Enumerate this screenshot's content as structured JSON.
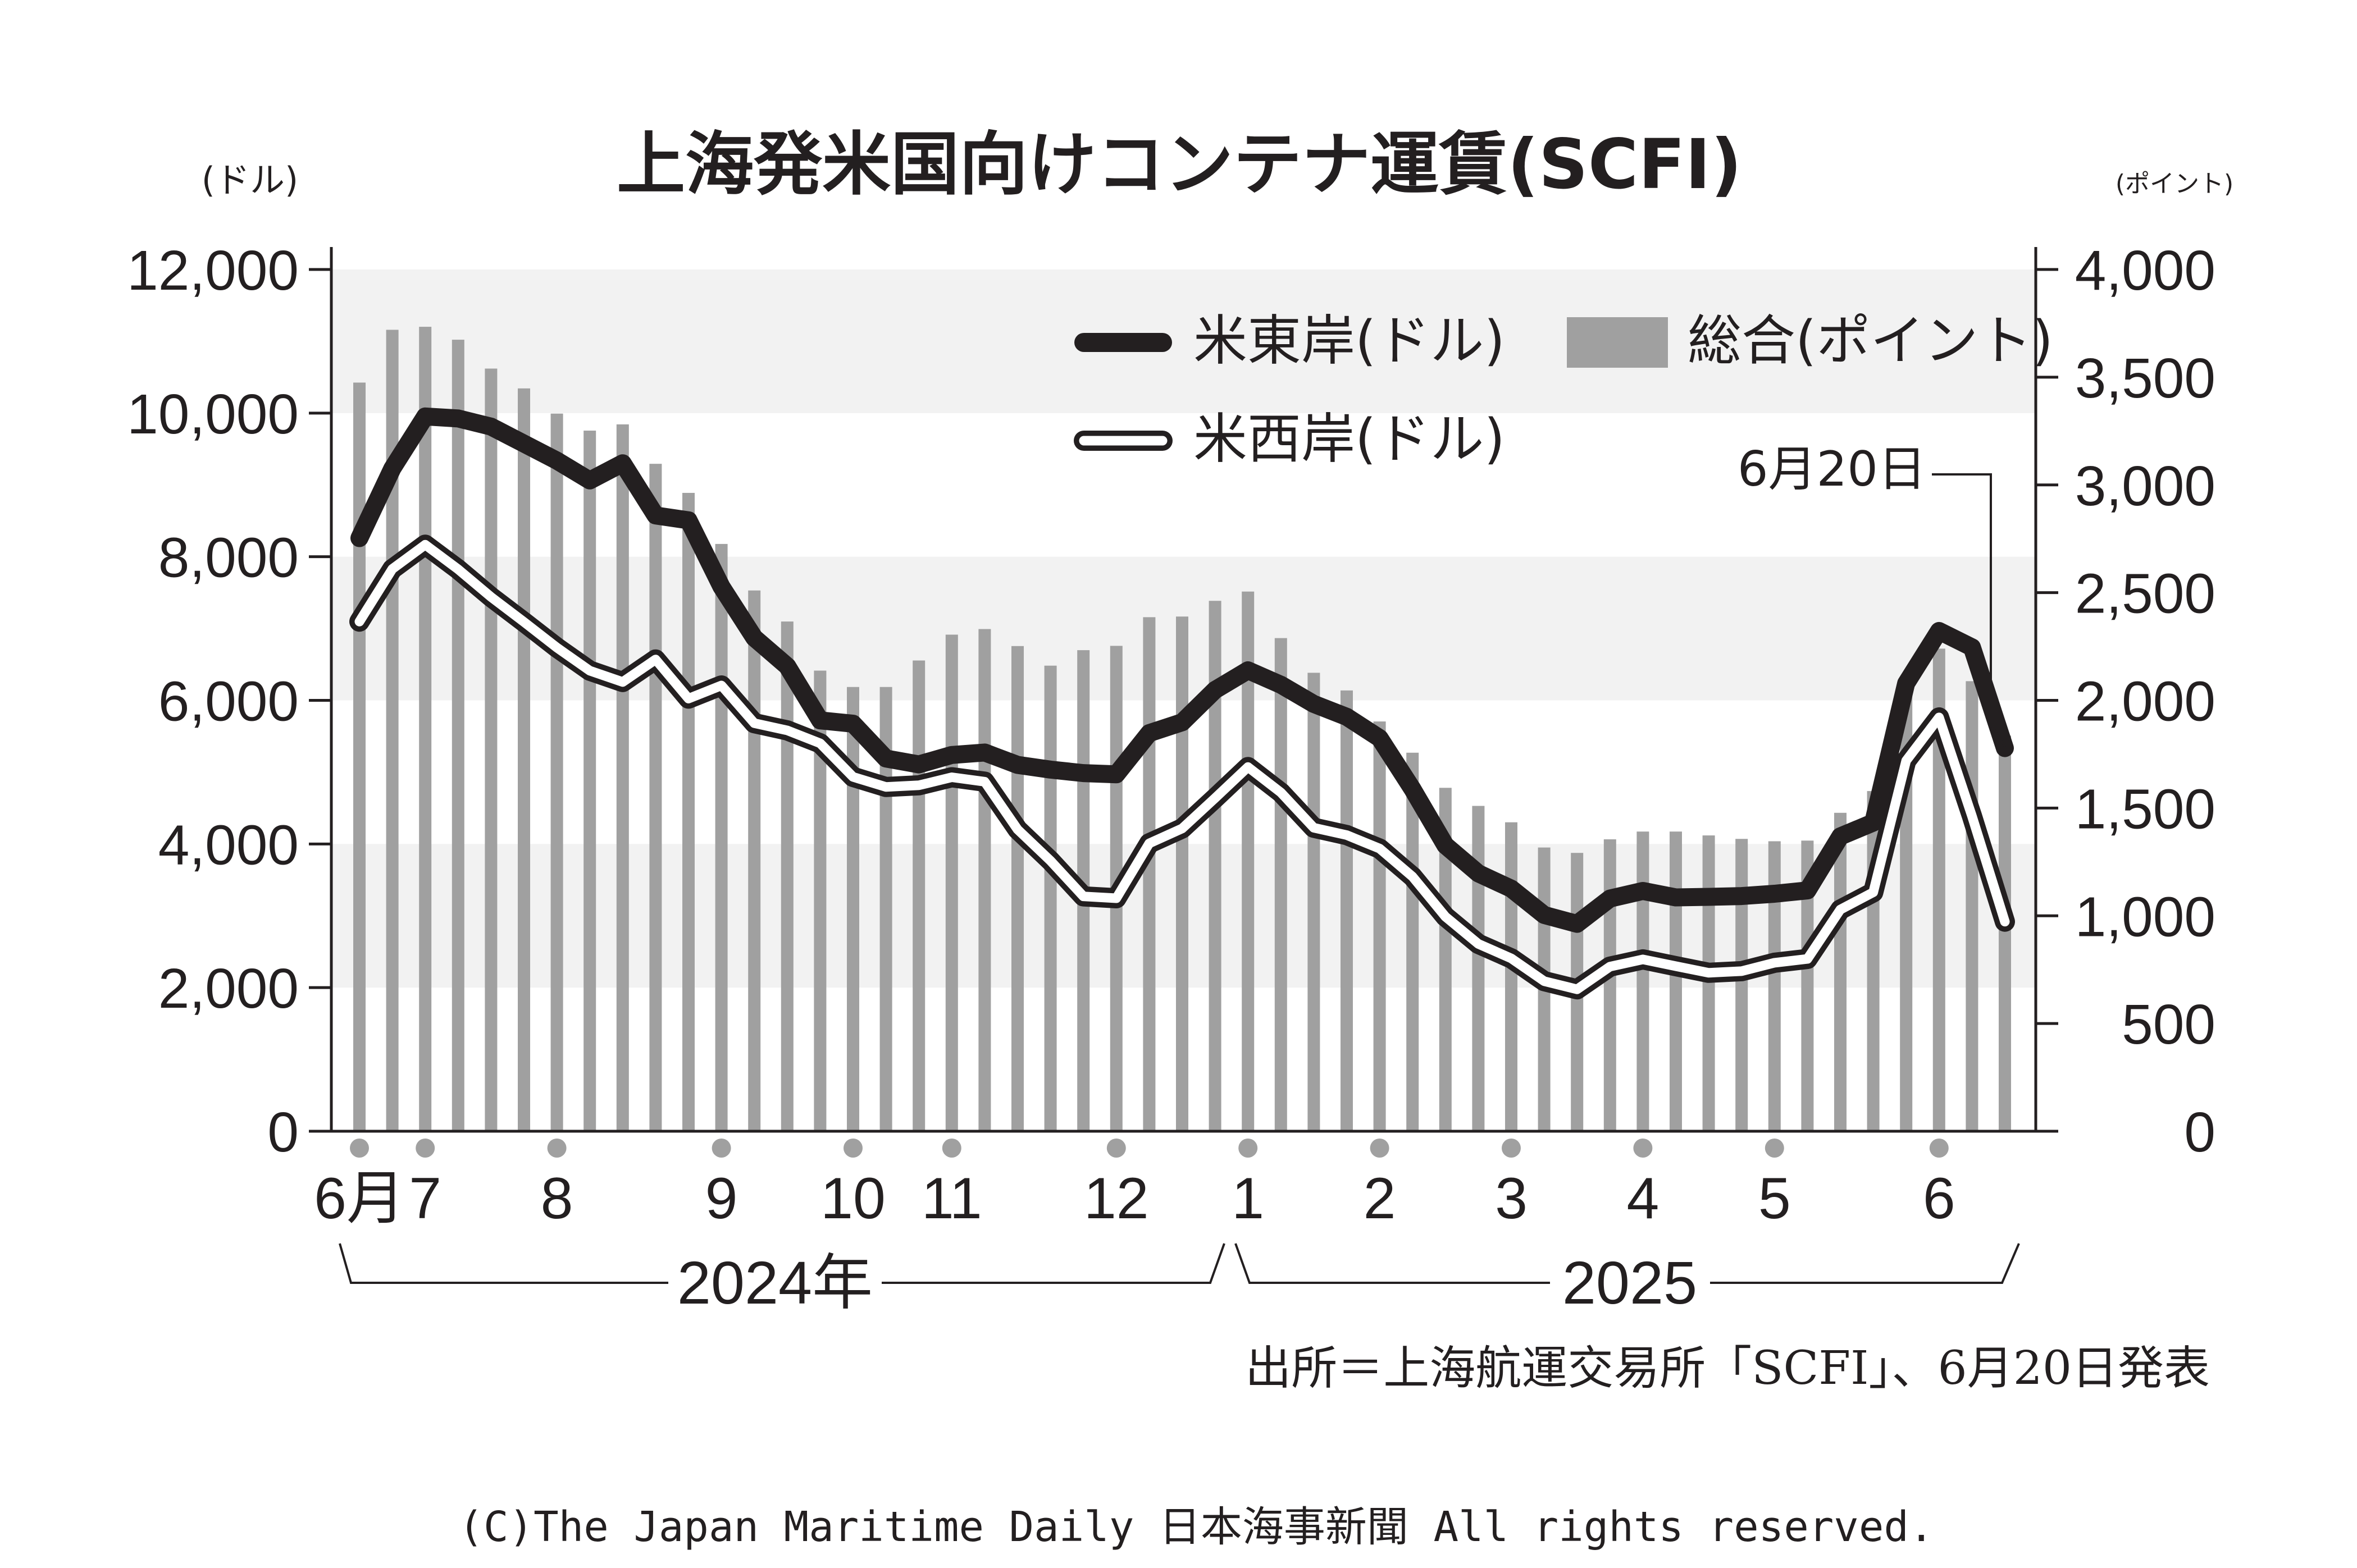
{
  "chart_data": {
    "type": "bar+line",
    "title": "上海発米国向けコンテナ運賃(SCFI)",
    "left_unit": "(ドル)",
    "right_unit": "(ポイント)",
    "left_axis": {
      "min": 0,
      "max": 12000,
      "ticks": [
        0,
        2000,
        4000,
        6000,
        8000,
        10000,
        12000
      ],
      "tick_labels": [
        "0",
        "2,000",
        "4,000",
        "6,000",
        "8,000",
        "10,000",
        "12,000"
      ]
    },
    "right_axis": {
      "min": 0,
      "max": 4000,
      "ticks": [
        0,
        500,
        1000,
        1500,
        2000,
        2500,
        3000,
        3500,
        4000
      ],
      "tick_labels": [
        "0",
        "500",
        "1,000",
        "1,500",
        "2,000",
        "2,500",
        "3,000",
        "3,500",
        "4,000"
      ]
    },
    "month_labels": [
      {
        "label": "6月",
        "index": 0
      },
      {
        "label": "7",
        "index": 2
      },
      {
        "label": "8",
        "index": 6
      },
      {
        "label": "9",
        "index": 11
      },
      {
        "label": "10",
        "index": 15
      },
      {
        "label": "11",
        "index": 18
      },
      {
        "label": "12",
        "index": 23
      },
      {
        "label": "1",
        "index": 27
      },
      {
        "label": "2",
        "index": 31
      },
      {
        "label": "3",
        "index": 35
      },
      {
        "label": "4",
        "index": 39
      },
      {
        "label": "5",
        "index": 43
      },
      {
        "label": "6",
        "index": 48
      }
    ],
    "year_labels": [
      "2024年",
      "2025"
    ],
    "series": [
      {
        "name": "総合",
        "unit": "(ポイント)",
        "type": "bar",
        "axis": "right",
        "color": "#a0a0a0",
        "values": [
          3475,
          3720,
          3734,
          3674,
          3540,
          3448,
          3331,
          3252,
          3281,
          3098,
          2963,
          2726,
          2510,
          2366,
          2138,
          2062,
          2062,
          2185,
          2305,
          2331,
          2252,
          2161,
          2233,
          2253,
          2386,
          2389,
          2462,
          2505,
          2289,
          2128,
          2046,
          1902,
          1757,
          1594,
          1510,
          1434,
          1317,
          1292,
          1355,
          1391,
          1391,
          1373,
          1357,
          1346,
          1349,
          1478,
          1579,
          2090,
          2240,
          2089,
          1836
        ]
      },
      {
        "name": "米東岸",
        "unit": "(ドル)",
        "type": "line",
        "axis": "left",
        "color": "#231f20",
        "values": [
          8259,
          9229,
          9953,
          9925,
          9812,
          9575,
          9338,
          9062,
          9301,
          8574,
          8507,
          7583,
          6871,
          6475,
          5721,
          5675,
          5190,
          5108,
          5239,
          5274,
          5101,
          5035,
          4987,
          4970,
          5544,
          5694,
          6145,
          6418,
          6217,
          5950,
          5771,
          5474,
          4763,
          3981,
          3591,
          3378,
          3011,
          2888,
          3240,
          3346,
          3256,
          3264,
          3275,
          3307,
          3353,
          4106,
          4298,
          6237,
          6966,
          6738,
          5335
        ]
      },
      {
        "name": "米西岸",
        "unit": "(ドル)",
        "type": "line",
        "axis": "left",
        "color": "#ffffff",
        "values": [
          7097,
          7829,
          8167,
          7825,
          7439,
          7091,
          6735,
          6413,
          6256,
          6569,
          6024,
          6207,
          5682,
          5582,
          5402,
          4934,
          4794,
          4817,
          4929,
          4867,
          4202,
          3766,
          3270,
          3244,
          4009,
          4216,
          4639,
          5071,
          4716,
          4226,
          4124,
          3936,
          3545,
          2988,
          2609,
          2407,
          2090,
          1976,
          2292,
          2393,
          2298,
          2206,
          2229,
          2346,
          2399,
          3086,
          3327,
          5160,
          5762,
          4388,
          2918
        ]
      }
    ],
    "annotation": "6月20日",
    "source": "出所＝上海航運交易所「SCFI」、6月20日発表",
    "copyright": "(C)The Japan Maritime Daily 日本海事新聞 All rights reserved."
  }
}
